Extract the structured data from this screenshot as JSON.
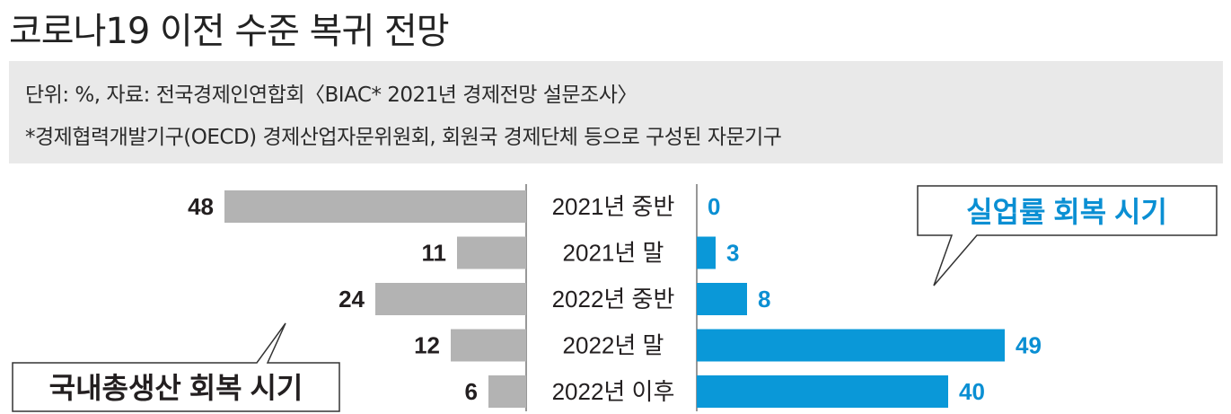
{
  "title": "코로나19 이전 수준 복귀 전망",
  "source": {
    "line1": "단위: %, 자료: 전국경제인연합회〈BIAC* 2021년 경제전망 설문조사〉",
    "line2": "*경제협력개발기구(OECD) 경제산업자문위원회, 회원국 경제단체 등으로 구성된 자문기구"
  },
  "colors": {
    "gdp_bar": "#b3b3b3",
    "unemployment_bar": "#0a98d8",
    "unemployment_label": "#0a8fd3",
    "text": "#231f20",
    "divider": "#777777"
  },
  "chart_data": {
    "type": "bar",
    "orientation": "horizontal-butterfly",
    "unit": "%",
    "categories": [
      "2021년 중반",
      "2021년 말",
      "2022년 중반",
      "2022년 말",
      "2022년 이후"
    ],
    "series": [
      {
        "name": "국내총생산 회복 시기",
        "values": [
          48,
          11,
          24,
          12,
          6
        ],
        "side": "left"
      },
      {
        "name": "실업률 회복 시기",
        "values": [
          0,
          3,
          8,
          49,
          40
        ],
        "side": "right"
      }
    ]
  }
}
